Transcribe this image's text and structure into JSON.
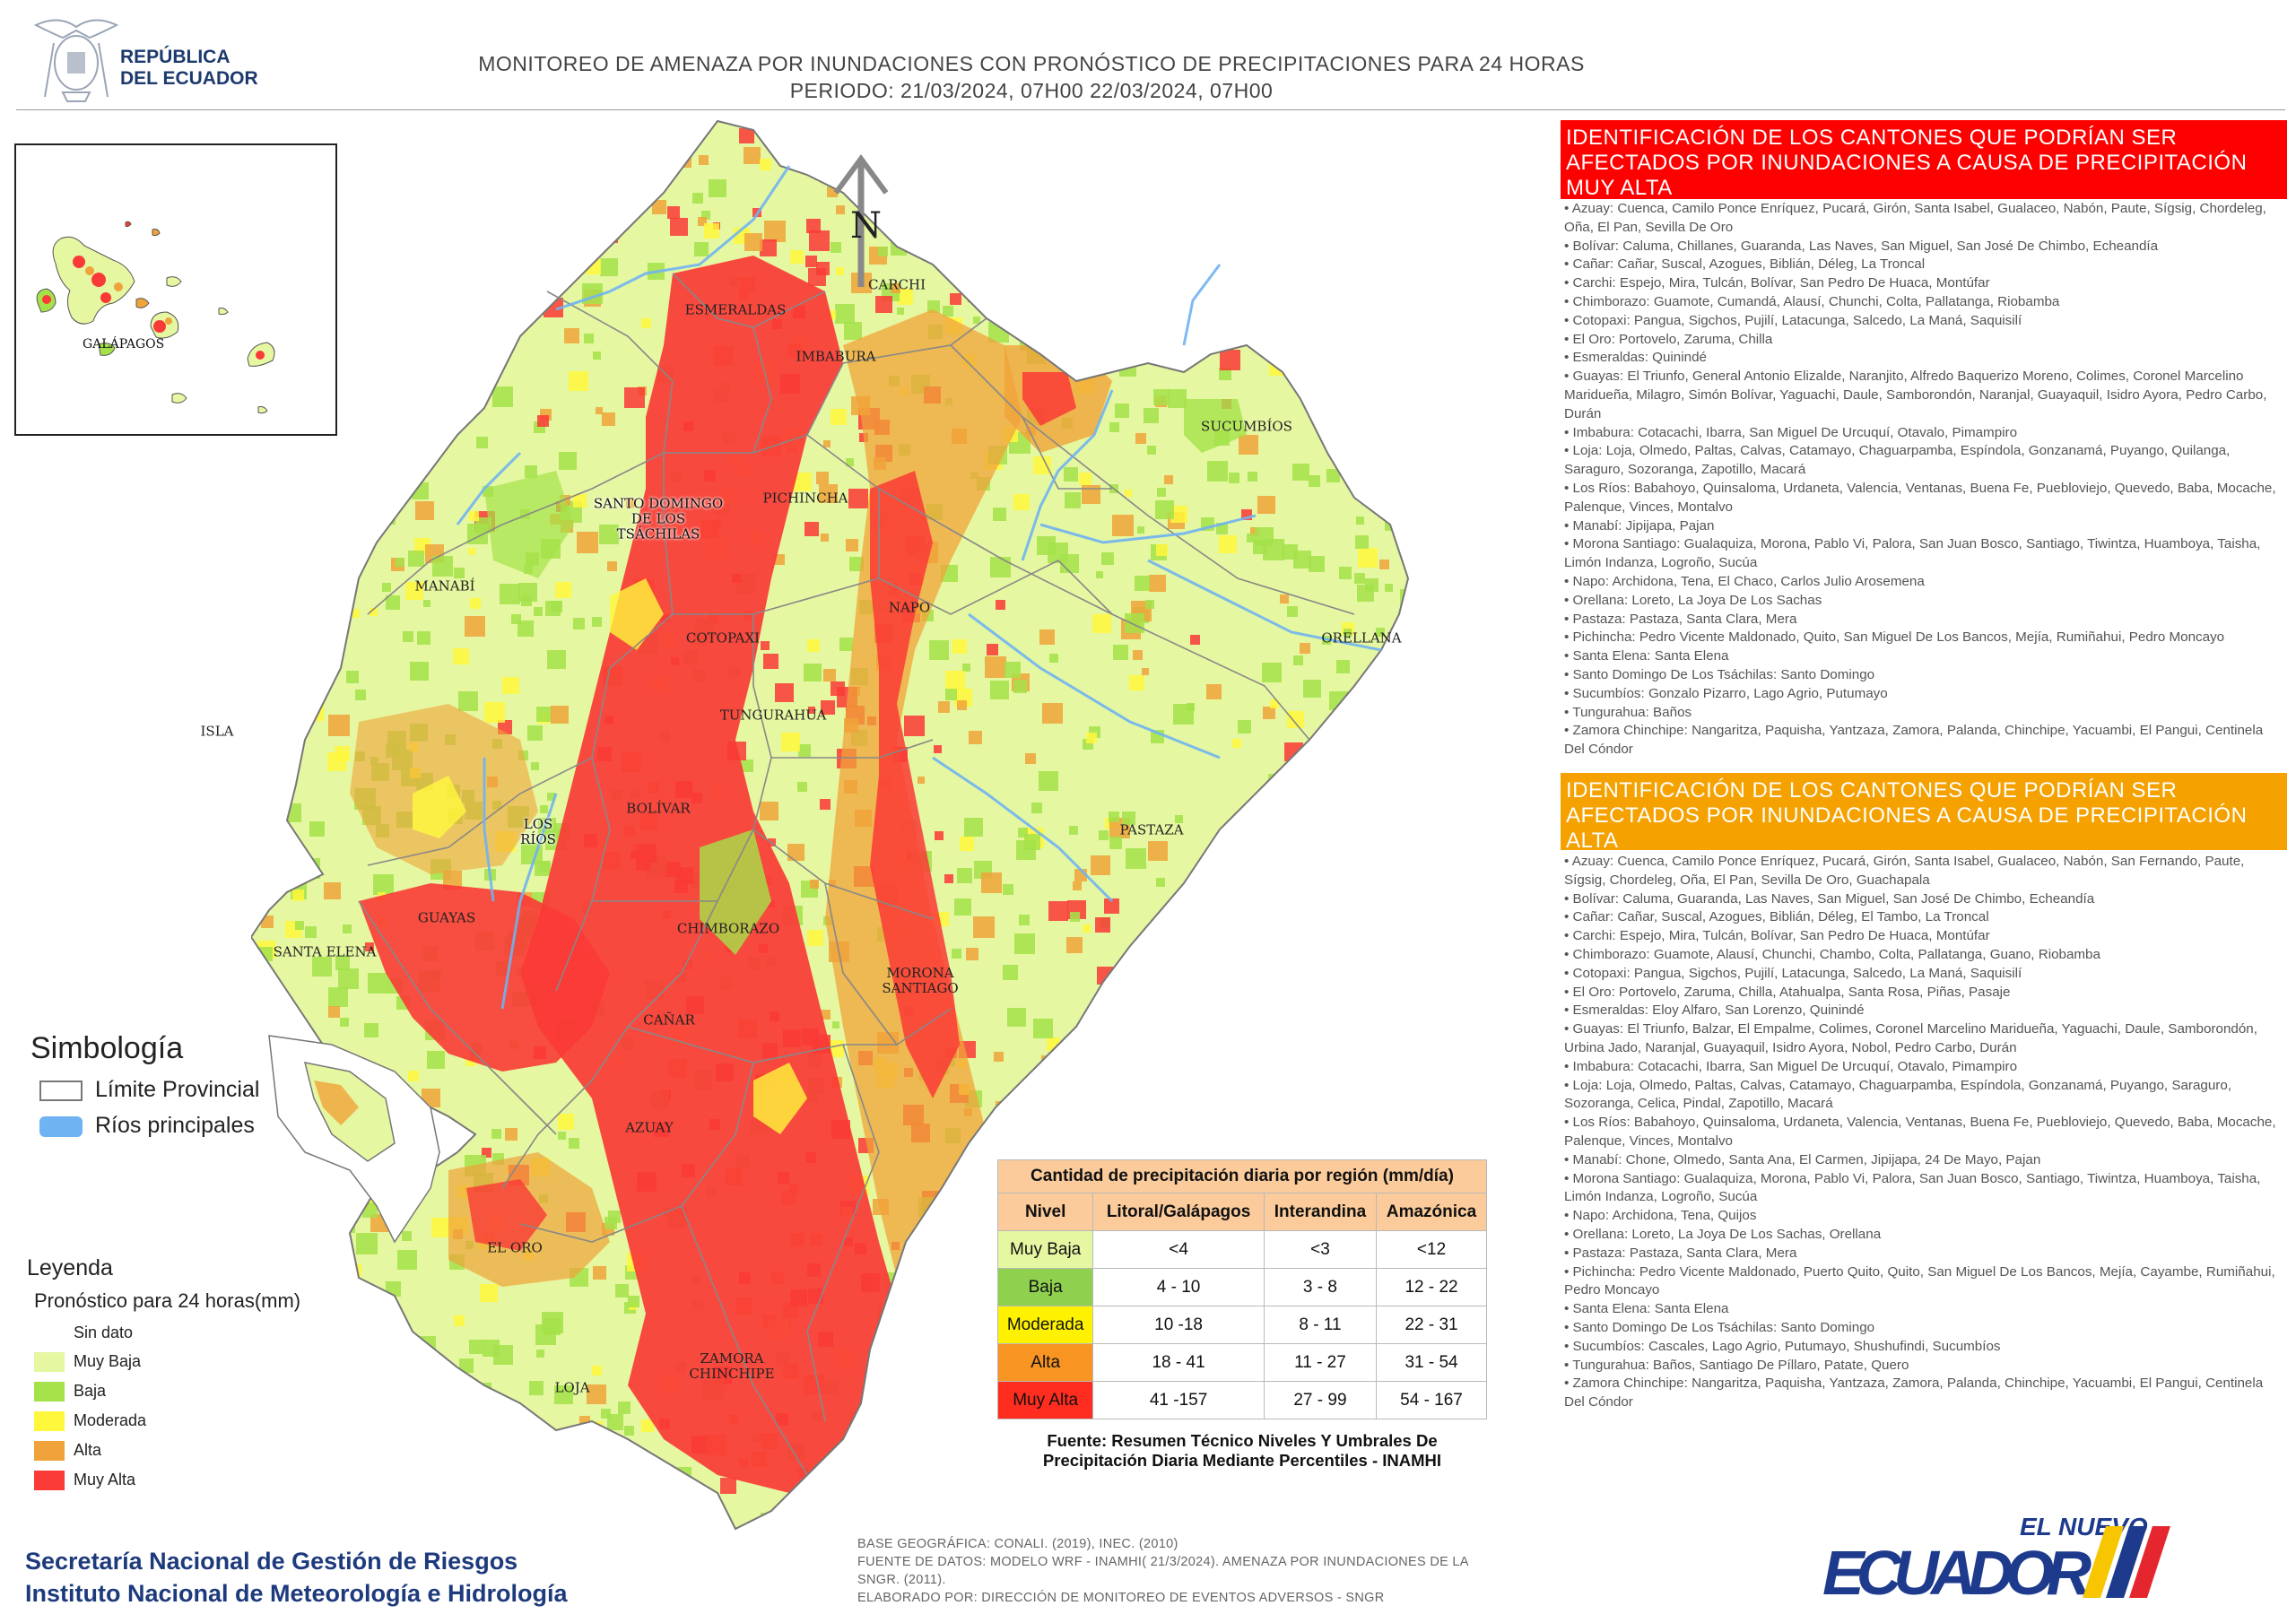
{
  "header": {
    "logo_text_1": "REPÚBLICA",
    "logo_text_2": "DEL ECUADOR",
    "title_line1": "MONITOREO DE AMENAZA POR INUNDACIONES  CON PRONÓSTICO DE  PRECIPITACIONES PARA 24 HORAS",
    "title_line2": "PERIODO: 21/03/2024, 07H00 22/03/2024, 07H00"
  },
  "map": {
    "north_label": "N",
    "inset_label": "GALÁPAGOS",
    "labels": {
      "esmeraldas": "ESMERALDAS",
      "carchi": "CARCHI",
      "imbabura": "IMBABURA",
      "sucumbios": "SUCUMBÍOS",
      "santo_domingo": "SANTO DOMINGO\nDE LOS\nTSÁCHILAS",
      "pichincha": "PICHINCHA",
      "manabi": "MANABÍ",
      "napo": "NAPO",
      "orellana": "ORELLANA",
      "cotopaxi": "COTOPAXI",
      "tungurahua": "TUNGURAHUA",
      "isla": "ISLA",
      "bolivar": "BOLÍVAR",
      "los_rios": "LOS\nRÍOS",
      "pastaza": "PASTAZA",
      "guayas": "GUAYAS",
      "santa_elena": "SANTA ELENA",
      "chimborazo": "CHIMBORAZO",
      "morona": "MORONA\nSANTIAGO",
      "canar": "CAÑAR",
      "azuay": "AZUAY",
      "el_oro": "EL ORO",
      "zamora": "ZAMORA\nCHINCHIPE",
      "loja": "LOJA"
    },
    "colors": {
      "muy_baja": "#e5f7a1",
      "baja": "#a5e24a",
      "moderada": "#fff73c",
      "alta": "#f0a33a",
      "muy_alta": "#fa3a36",
      "rios": "#6fb3f2",
      "sea": "#ffffff"
    }
  },
  "panels": {
    "red_heading": "IDENTIFICACIÓN DE LOS CANTONES QUE PODRÍAN SER AFECTADOS POR INUNDACIONES  A CAUSA DE PRECIPITACIÓN MUY ALTA",
    "red_items": [
      "• Azuay: Cuenca, Camilo Ponce Enríquez, Pucará, Girón, Santa Isabel, Gualaceo, Nabón, Paute, Sígsig, Chordeleg, Oña, El Pan, Sevilla De Oro",
      "• Bolívar: Caluma, Chillanes, Guaranda, Las Naves, San Miguel, San José De Chimbo, Echeandía",
      "• Cañar: Cañar, Suscal, Azogues, Biblián, Déleg, La Troncal",
      "• Carchi: Espejo, Mira, Tulcán, Bolívar, San Pedro De Huaca, Montúfar",
      "• Chimborazo: Guamote, Cumandá, Alausí, Chunchi, Colta, Pallatanga, Riobamba",
      "• Cotopaxi: Pangua, Sigchos, Pujilí, Latacunga, Salcedo, La Maná, Saquisilí",
      "• El Oro: Portovelo, Zaruma, Chilla",
      "• Esmeraldas: Quinindé",
      "• Guayas: El Triunfo, General Antonio Elizalde, Naranjito, Alfredo Baquerizo Moreno, Colimes, Coronel Marcelino Maridueña, Milagro, Simón Bolívar, Yaguachi, Daule, Samborondón, Naranjal, Guayaquil, Isidro Ayora, Pedro Carbo, Durán",
      "• Imbabura: Cotacachi, Ibarra, San Miguel De Urcuquí, Otavalo, Pimampiro",
      "• Loja: Loja, Olmedo, Paltas, Calvas, Catamayo, Chaguarpamba, Espíndola, Gonzanamá, Puyango, Quilanga, Saraguro, Sozoranga, Zapotillo, Macará",
      "• Los Ríos: Babahoyo, Quinsaloma, Urdaneta, Valencia, Ventanas, Buena Fe, Puebloviejo, Quevedo, Baba, Mocache, Palenque, Vinces, Montalvo",
      "• Manabí: Jipijapa, Pajan",
      "• Morona Santiago: Gualaquiza, Morona, Pablo Vi, Palora, San Juan Bosco, Santiago, Tiwintza, Huamboya, Taisha, Limón Indanza, Logroño, Sucúa",
      "• Napo: Archidona, Tena, El Chaco, Carlos Julio Arosemena",
      "• Orellana: Loreto, La Joya De Los Sachas",
      "• Pastaza: Pastaza, Santa Clara, Mera",
      "• Pichincha: Pedro Vicente Maldonado, Quito, San Miguel De Los Bancos, Mejía, Rumiñahui, Pedro Moncayo",
      "• Santa Elena: Santa Elena",
      "• Santo Domingo De Los Tsáchilas: Santo Domingo",
      "• Sucumbíos: Gonzalo Pizarro, Lago Agrio, Putumayo",
      "• Tungurahua: Baños",
      "• Zamora Chinchipe: Nangaritza, Paquisha, Yantzaza, Zamora, Palanda, Chinchipe, Yacuambi, El Pangui, Centinela Del Cóndor"
    ],
    "orange_heading": "IDENTIFICACIÓN DE LOS CANTONES QUE  PODRÍAN SER AFECTADOS POR INUNDACIONES  A CAUSA DE PRECIPITACIÓN  ALTA",
    "orange_items": [
      "• Azuay: Cuenca, Camilo Ponce Enríquez, Pucará, Girón, Santa Isabel, Gualaceo, Nabón, San Fernando, Paute, Sígsig, Chordeleg, Oña, El Pan, Sevilla De Oro, Guachapala",
      "• Bolívar: Caluma, Guaranda, Las Naves, San Miguel, San José De Chimbo, Echeandía",
      "• Cañar: Cañar, Suscal, Azogues, Biblián, Déleg, El Tambo, La Troncal",
      "• Carchi: Espejo, Mira, Tulcán, Bolívar, San Pedro De Huaca, Montúfar",
      "• Chimborazo: Guamote, Alausí, Chunchi, Chambo, Colta, Pallatanga, Guano, Riobamba",
      "• Cotopaxi: Pangua, Sigchos, Pujilí, Latacunga, Salcedo, La Maná, Saquisilí",
      "• El Oro: Portovelo, Zaruma, Chilla, Atahualpa, Santa Rosa, Piñas, Pasaje",
      "• Esmeraldas: Eloy Alfaro, San Lorenzo, Quinindé",
      "• Guayas: El Triunfo, Balzar, El Empalme, Colimes, Coronel Marcelino Maridueña, Yaguachi, Daule, Samborondón, Urbina Jado, Naranjal, Guayaquil, Isidro Ayora, Nobol, Pedro Carbo, Durán",
      "• Imbabura: Cotacachi, Ibarra, San Miguel De Urcuquí, Otavalo, Pimampiro",
      "• Loja: Loja, Olmedo, Paltas, Calvas, Catamayo, Chaguarpamba, Espíndola, Gonzanamá, Puyango, Saraguro, Sozoranga, Celica, Pindal, Zapotillo, Macará",
      "• Los Ríos: Babahoyo, Quinsaloma, Urdaneta, Valencia, Ventanas, Buena Fe, Puebloviejo, Quevedo, Baba, Mocache, Palenque, Vinces, Montalvo",
      "• Manabí: Chone, Olmedo, Santa Ana, El Carmen, Jipijapa, 24 De Mayo, Pajan",
      "• Morona Santiago: Gualaquiza, Morona, Pablo Vi, Palora, San Juan Bosco, Santiago, Tiwintza, Huamboya, Taisha, Limón Indanza, Logroño, Sucúa",
      "• Napo: Archidona, Tena, Quijos",
      "• Orellana: Loreto, La Joya De Los Sachas, Orellana",
      "• Pastaza: Pastaza, Santa Clara, Mera",
      "• Pichincha: Pedro Vicente Maldonado, Puerto Quito, Quito, San Miguel De Los Bancos, Mejía, Cayambe, Rumiñahui, Pedro Moncayo",
      "• Santa Elena: Santa Elena",
      "• Santo Domingo De Los Tsáchilas: Santo Domingo",
      "• Sucumbíos: Cascales, Lago Agrio, Putumayo, Shushufindi, Sucumbíos",
      "• Tungurahua: Baños, Santiago De Píllaro, Patate, Quero",
      "• Zamora Chinchipe: Nangaritza, Paquisha, Yantzaza, Zamora, Palanda, Chinchipe, Yacuambi, El Pangui, Centinela Del Cóndor"
    ]
  },
  "simbologia": {
    "title": "Simbología",
    "limite": "Límite Provincial",
    "rios": "Ríos principales"
  },
  "leyenda": {
    "title": "Leyenda",
    "subtitle": "Pronóstico para 24 horas(mm)",
    "sin_dato": "Sin dato",
    "items": [
      "Muy Baja",
      "Baja",
      "Moderada",
      "Alta",
      "Muy Alta"
    ]
  },
  "table": {
    "caption": "Cantidad de precipitación diaria por región (mm/día)",
    "headers": [
      "Nivel",
      "Litoral/Galápagos",
      "Interandina",
      "Amazónica"
    ],
    "rows": [
      {
        "level": "Muy Baja",
        "color": "#e5f7a1",
        "litoral": "<4",
        "interandina": "<3",
        "amazonica": "<12"
      },
      {
        "level": "Baja",
        "color": "#8fd14f",
        "litoral": "4 - 10",
        "interandina": "3 - 8",
        "amazonica": "12 - 22"
      },
      {
        "level": "Moderada",
        "color": "#fff200",
        "litoral": "10 -18",
        "interandina": "8 - 11",
        "amazonica": "22 - 31"
      },
      {
        "level": "Alta",
        "color": "#f79422",
        "litoral": "18 - 41",
        "interandina": "11 - 27",
        "amazonica": "31 - 54"
      },
      {
        "level": "Muy Alta",
        "color": "#ff2d1f",
        "litoral": "41 -157",
        "interandina": "27 - 99",
        "amazonica": "54 - 167"
      }
    ],
    "source_line1": "Fuente: Resumen Técnico Niveles Y Umbrales De",
    "source_line2": "Precipitación Diaria Mediante Percentiles - INAMHI"
  },
  "footer": {
    "org1": "Secretaría Nacional de Gestión de Riesgos",
    "org2": "Instituto Nacional de Meteorología e Hidrología",
    "note1": "BASE GEOGRÁFICA: CONALI. (2019), INEC. (2010)",
    "note2": "FUENTE DE DATOS: MODELO WRF - INAMHI( 21/3/2024).  AMENAZA POR INUNDACIONES DE LA SNGR. (2011).",
    "note3": "ELABORADO POR: DIRECCIÓN DE MONITOREO DE EVENTOS ADVERSOS - SNGR",
    "brand_top": "EL NUEVO",
    "brand_main": "ECUADOR"
  }
}
